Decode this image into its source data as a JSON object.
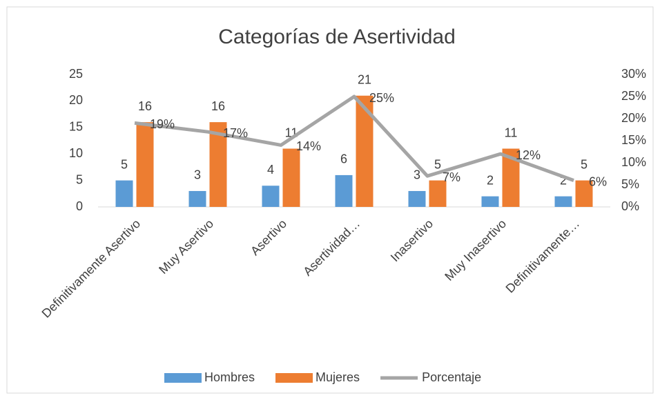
{
  "chart_data": {
    "type": "bar",
    "title": "Categorías de Asertividad",
    "categories": [
      "Definitivamente Asertivo",
      "Muy Asertivo",
      "Asertivo",
      "Asertividad…",
      "Inasertivo",
      "Muy Inasertivo",
      "Definitivamente…"
    ],
    "series": [
      {
        "name": "Hombres",
        "type": "bar",
        "color": "#5b9bd5",
        "values": [
          5,
          3,
          4,
          6,
          3,
          2,
          2
        ]
      },
      {
        "name": "Mujeres",
        "type": "bar",
        "color": "#ed7d31",
        "values": [
          16,
          16,
          11,
          21,
          5,
          11,
          5
        ]
      },
      {
        "name": "Porcentaje",
        "type": "line",
        "axis": "y2",
        "color": "#a5a5a5",
        "values": [
          19,
          17,
          14,
          25,
          7,
          12,
          6
        ],
        "value_labels": [
          "19%",
          "17%",
          "14%",
          "25%",
          "7%",
          "12%",
          "6%"
        ]
      }
    ],
    "ylim": [
      0,
      25
    ],
    "yticks": [
      0,
      5,
      10,
      15,
      20,
      25
    ],
    "y2lim": [
      0,
      30
    ],
    "y2ticks": [
      {
        "value": 0,
        "label": "0%"
      },
      {
        "value": 5,
        "label": "5%"
      },
      {
        "value": 10,
        "label": "10%"
      },
      {
        "value": 15,
        "label": "15%"
      },
      {
        "value": 20,
        "label": "20%"
      },
      {
        "value": 25,
        "label": "25%"
      },
      {
        "value": 30,
        "label": "30%"
      }
    ],
    "grid": false,
    "legend": "bottom"
  }
}
